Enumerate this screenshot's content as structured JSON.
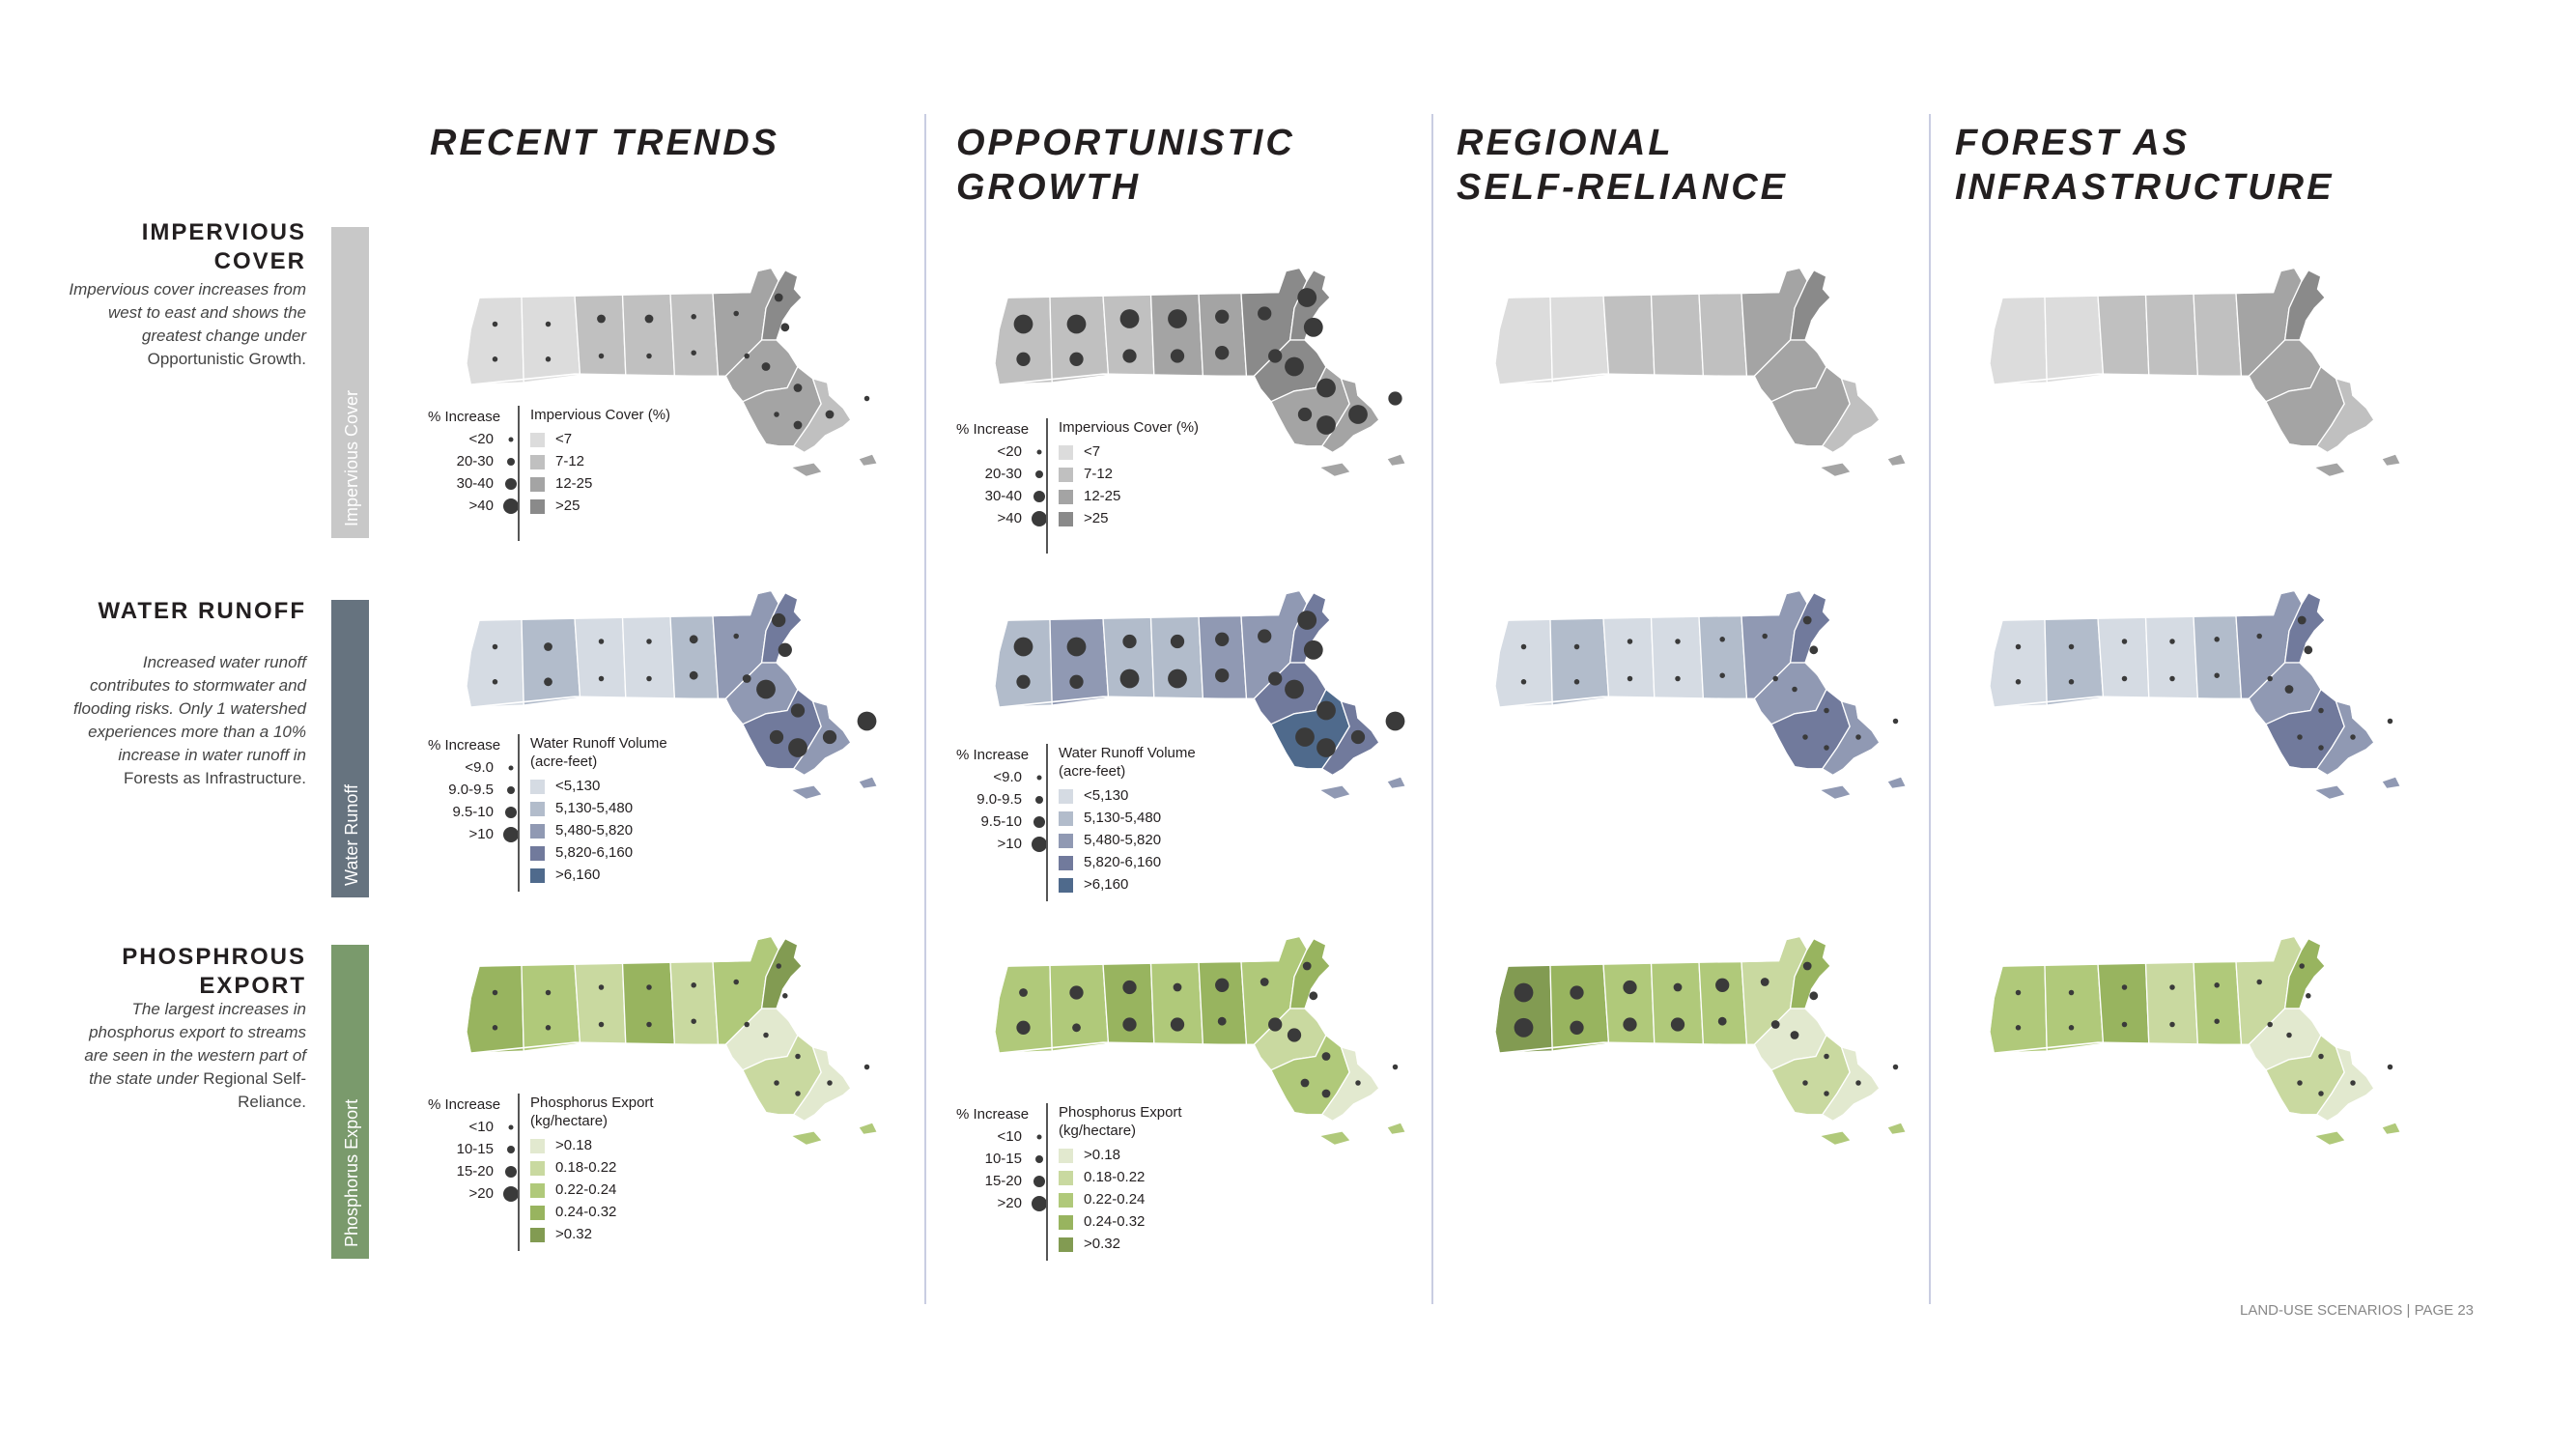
{
  "columns": [
    {
      "title": "RECENT TRENDS"
    },
    {
      "title": "OPPORTUNISTIC\nGROWTH"
    },
    {
      "title": "REGIONAL\nSELF-RELIANCE"
    },
    {
      "title": "FOREST AS\nINFRASTRUCTURE"
    }
  ],
  "rows": [
    {
      "title": "IMPERVIOUS\nCOVER",
      "desc": "Impervious cover increases from west to east and shows the greatest change under",
      "desc_tail": "Opportunistic Growth.",
      "tab": "Impervious Cover",
      "tab_color": "#c8c8c8",
      "legend": {
        "pct_header": "% Increase",
        "pct_items": [
          "<20",
          "20-30",
          "30-40",
          ">40"
        ],
        "cls_header": "Impervious Cover (%)",
        "cls_items": [
          "<7",
          "7-12",
          "12-25",
          ">25"
        ],
        "cls_colors": [
          "#dcdcdc",
          "#c0c0c0",
          "#a4a4a4",
          "#8a8a8a"
        ]
      }
    },
    {
      "title": "WATER RUNOFF",
      "desc": "Increased water runoff contributes to stormwater and flooding risks. Only 1 watershed experiences more than a 10% increase in water runoff in",
      "desc_tail": "Forests as Infrastructure.",
      "tab": "Water Runoff",
      "tab_color": "#66737f",
      "legend": {
        "pct_header": "% Increase",
        "pct_items": [
          "<9.0",
          "9.0-9.5",
          "9.5-10",
          ">10"
        ],
        "cls_header": "Water Runoff Volume\n(acre-feet)",
        "cls_items": [
          "<5,130",
          "5,130-5,480",
          "5,480-5,820",
          "5,820-6,160",
          ">6,160"
        ],
        "cls_colors": [
          "#d5dbe3",
          "#b2bccb",
          "#9099b3",
          "#717a9c",
          "#4f6a8c"
        ]
      }
    },
    {
      "title": "PHOSPHROUS\nEXPORT",
      "desc": "The largest increases in phosphorus export to streams are seen in the western part of the state under",
      "desc_tail": "Regional Self-Reliance.",
      "tab": "Phosphorus Export",
      "tab_color": "#7a9a6c",
      "legend": {
        "pct_header": "% Increase",
        "pct_items": [
          "<10",
          "10-15",
          "15-20",
          ">20"
        ],
        "cls_header": "Phosphorus Export\n(kg/hectare)",
        "cls_items": [
          ">0.18",
          "0.18-0.22",
          "0.22-0.24",
          "0.24-0.32",
          ">0.32"
        ],
        "cls_colors": [
          "#e2e9cf",
          "#c9d9a0",
          "#b0c97a",
          "#98b45f",
          "#829b52"
        ]
      }
    }
  ],
  "footer": "LAND-USE SCENARIOS | PAGE 23"
}
